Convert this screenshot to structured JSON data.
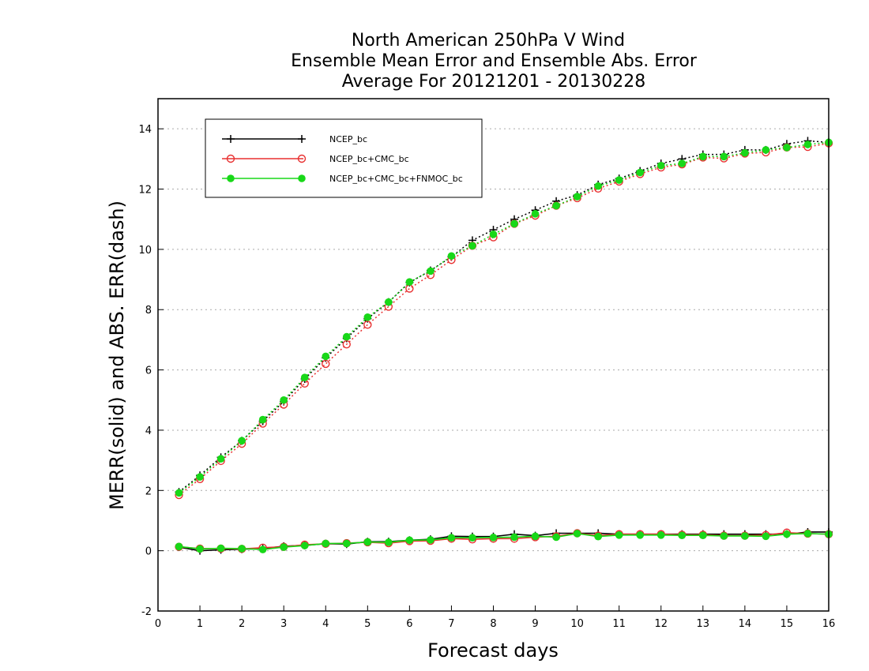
{
  "chart_data": {
    "type": "line",
    "title_lines": [
      "North American 250hPa V Wind",
      "Ensemble Mean Error and Ensemble Abs. Error",
      "Average For 20121201 - 20130228"
    ],
    "xlabel": "Forecast days",
    "ylabel": "MERR(solid) and ABS. ERR(dash)",
    "xlim": [
      0,
      16
    ],
    "ylim": [
      -2,
      15
    ],
    "xticks": [
      "0",
      "1",
      "2",
      "3",
      "4",
      "5",
      "6",
      "7",
      "8",
      "9",
      "10",
      "11",
      "12",
      "13",
      "14",
      "15",
      "16"
    ],
    "yticks": [
      "-2",
      "0",
      "2",
      "4",
      "6",
      "8",
      "10",
      "12",
      "14"
    ],
    "grid": "horizontal dotted",
    "legend_position": "top-left",
    "x": [
      0.5,
      1,
      1.5,
      2,
      2.5,
      3,
      3.5,
      4,
      4.5,
      5,
      5.5,
      6,
      6.5,
      7,
      7.5,
      8,
      8.5,
      9,
      9.5,
      10,
      10.5,
      11,
      11.5,
      12,
      12.5,
      13,
      13.5,
      14,
      14.5,
      15,
      15.5,
      16
    ],
    "series": [
      {
        "name": "NCEP_bc",
        "color": "#000000",
        "marker": "plus",
        "abs_err": [
          1.95,
          2.5,
          3.1,
          3.65,
          4.3,
          4.95,
          5.7,
          6.4,
          7.05,
          7.7,
          8.25,
          8.9,
          9.3,
          9.75,
          10.3,
          10.65,
          11.0,
          11.3,
          11.6,
          11.8,
          12.15,
          12.35,
          12.6,
          12.85,
          13.0,
          13.15,
          13.15,
          13.3,
          13.3,
          13.5,
          13.6,
          13.55
        ],
        "mean_err": [
          0.12,
          0.0,
          0.03,
          0.05,
          0.07,
          0.15,
          0.18,
          0.23,
          0.22,
          0.3,
          0.3,
          0.35,
          0.38,
          0.48,
          0.47,
          0.47,
          0.55,
          0.5,
          0.58,
          0.58,
          0.58,
          0.55,
          0.55,
          0.55,
          0.55,
          0.55,
          0.55,
          0.55,
          0.55,
          0.55,
          0.62,
          0.62
        ]
      },
      {
        "name": "NCEP_bc+CMC_bc",
        "color": "#e83030",
        "marker": "open-circle",
        "abs_err": [
          1.85,
          2.38,
          2.98,
          3.55,
          4.22,
          4.85,
          5.55,
          6.2,
          6.85,
          7.5,
          8.1,
          8.7,
          9.15,
          9.65,
          10.12,
          10.4,
          10.85,
          11.12,
          11.45,
          11.7,
          12.02,
          12.25,
          12.5,
          12.72,
          12.82,
          13.05,
          13.02,
          13.18,
          13.22,
          13.38,
          13.4,
          13.52
        ],
        "mean_err": [
          0.13,
          0.07,
          0.07,
          0.06,
          0.1,
          0.13,
          0.2,
          0.23,
          0.25,
          0.28,
          0.25,
          0.32,
          0.33,
          0.4,
          0.38,
          0.4,
          0.4,
          0.45,
          0.48,
          0.58,
          0.5,
          0.55,
          0.55,
          0.55,
          0.53,
          0.53,
          0.5,
          0.5,
          0.52,
          0.6,
          0.57,
          0.55
        ]
      },
      {
        "name": "NCEP_bc+CMC_bc+FNMOC_bc",
        "color": "#18d818",
        "marker": "filled-circle",
        "abs_err": [
          1.92,
          2.45,
          3.05,
          3.65,
          4.35,
          5.0,
          5.75,
          6.45,
          7.1,
          7.75,
          8.25,
          8.92,
          9.28,
          9.78,
          10.12,
          10.5,
          10.85,
          11.18,
          11.45,
          11.75,
          12.1,
          12.3,
          12.55,
          12.78,
          12.85,
          13.08,
          13.08,
          13.2,
          13.3,
          13.38,
          13.48,
          13.55
        ],
        "mean_err": [
          0.14,
          0.06,
          0.08,
          0.07,
          0.04,
          0.12,
          0.17,
          0.24,
          0.24,
          0.29,
          0.28,
          0.35,
          0.36,
          0.43,
          0.43,
          0.44,
          0.45,
          0.48,
          0.45,
          0.57,
          0.47,
          0.52,
          0.52,
          0.52,
          0.51,
          0.51,
          0.49,
          0.49,
          0.48,
          0.55,
          0.57,
          0.55
        ]
      }
    ]
  }
}
